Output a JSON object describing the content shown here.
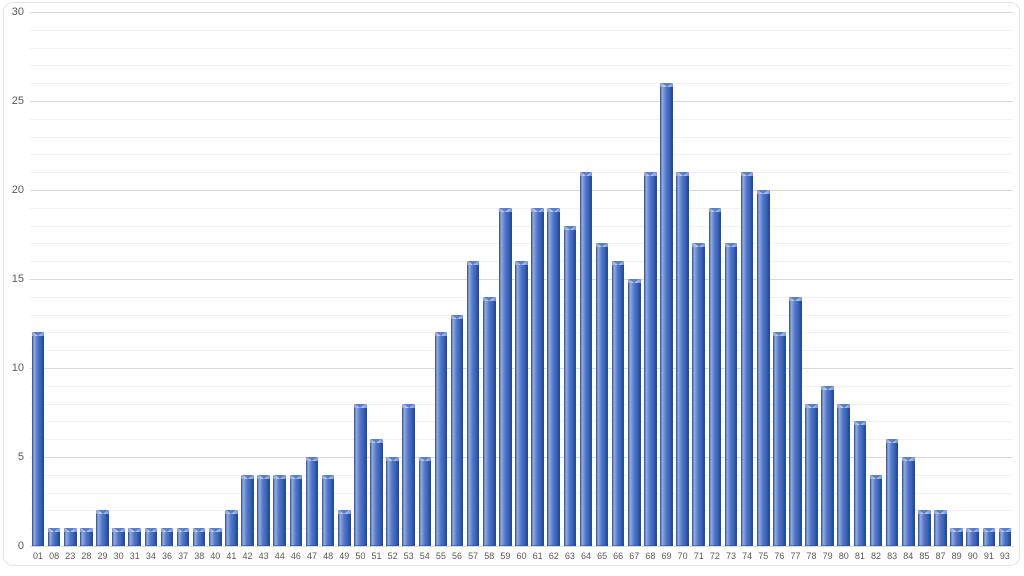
{
  "chart": {
    "colors": {
      "background": "#ffffff",
      "frame_border": "#e4e4e4",
      "grid_major": "#d9d9d9",
      "grid_minor": "#f2f2f2",
      "axis_label_text": "#595959",
      "bar_fill_main": "#4b74c8",
      "bar_fill_highlight": "#93abe4",
      "bar_fill_dark_edge": "#24417f",
      "bar_cap_light": "#c2d1f0"
    }
  },
  "chart_data": {
    "type": "bar",
    "title": "",
    "xlabel": "",
    "ylabel": "",
    "categories": [
      "01",
      "08",
      "23",
      "28",
      "29",
      "30",
      "31",
      "34",
      "36",
      "37",
      "38",
      "40",
      "41",
      "42",
      "43",
      "44",
      "46",
      "47",
      "48",
      "49",
      "50",
      "51",
      "52",
      "53",
      "54",
      "55",
      "56",
      "57",
      "58",
      "59",
      "60",
      "61",
      "62",
      "63",
      "64",
      "65",
      "66",
      "67",
      "68",
      "69",
      "70",
      "71",
      "72",
      "73",
      "74",
      "75",
      "76",
      "77",
      "78",
      "79",
      "80",
      "81",
      "82",
      "83",
      "84",
      "85",
      "87",
      "89",
      "90",
      "91",
      "93"
    ],
    "values": [
      12,
      1,
      1,
      1,
      2,
      1,
      1,
      1,
      1,
      1,
      1,
      1,
      2,
      4,
      4,
      4,
      4,
      5,
      4,
      2,
      8,
      6,
      5,
      8,
      5,
      12,
      13,
      16,
      14,
      19,
      16,
      19,
      19,
      18,
      21,
      17,
      16,
      15,
      21,
      26,
      21,
      17,
      19,
      17,
      21,
      20,
      12,
      14,
      8,
      9,
      8,
      7,
      4,
      6,
      5,
      2,
      2,
      1,
      1,
      1,
      1
    ],
    "ylim": [
      0,
      30
    ],
    "yticks": [
      0,
      5,
      10,
      15,
      20,
      25,
      30
    ],
    "ytick_major_interval": 5,
    "ytick_minor_interval": 1,
    "grid": "horizontal major and minor gridlines, no vertical gridlines",
    "legend": "none",
    "bar_style": "glossy blue gradient bars with light top cap"
  }
}
